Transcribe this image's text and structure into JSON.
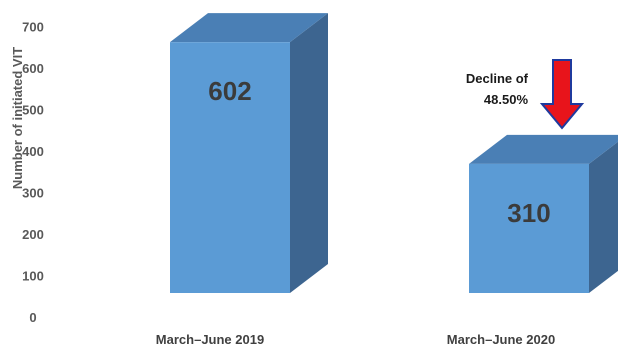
{
  "chart_data": {
    "type": "bar",
    "style": "3d-column",
    "categories": [
      "March–June 2019",
      "March–June 2020"
    ],
    "values": [
      602,
      310
    ],
    "data_labels": [
      "602",
      "310"
    ],
    "ylabel": "Number of initiated VIT",
    "ylim": [
      0,
      700
    ],
    "yticks": [
      0,
      100,
      200,
      300,
      400,
      500,
      600,
      700
    ],
    "ytick_labels": [
      "0",
      "100",
      "200",
      "300",
      "400",
      "500",
      "600",
      "700"
    ],
    "grid": false,
    "legend": "none",
    "colors": {
      "bar_front": "#5b9bd5",
      "bar_top": "#4a7fb5",
      "bar_side": "#3d6590",
      "arrow": "#e8141b",
      "arrow_outline": "#1f3a9e"
    },
    "annotation": {
      "lines": [
        "Decline of",
        "48.50%"
      ],
      "icon": "down-arrow-icon"
    }
  }
}
